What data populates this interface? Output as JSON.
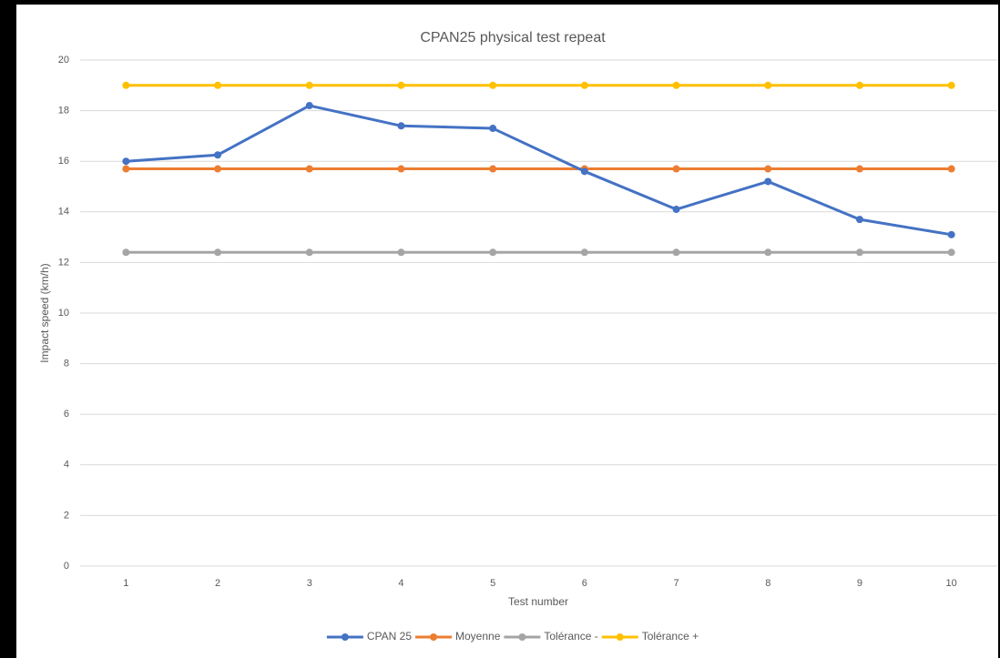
{
  "chart_data": {
    "type": "line",
    "title": "CPAN25 physical test repeat",
    "x_label": "Test number",
    "y_label": "Impact speed (km/h)",
    "categories": [
      "1",
      "2",
      "3",
      "4",
      "5",
      "6",
      "7",
      "8",
      "9",
      "10"
    ],
    "series": [
      {
        "name": "CPAN 25",
        "color": "#4472c4",
        "values": [
          16.0,
          16.25,
          18.2,
          17.4,
          17.3,
          15.6,
          14.1,
          15.2,
          13.7,
          13.1
        ]
      },
      {
        "name": "Moyenne",
        "color": "#ed7d31",
        "values": [
          15.7,
          15.7,
          15.7,
          15.7,
          15.7,
          15.7,
          15.7,
          15.7,
          15.7,
          15.7
        ]
      },
      {
        "name": "Tolérance -",
        "color": "#a5a5a5",
        "values": [
          12.4,
          12.4,
          12.4,
          12.4,
          12.4,
          12.4,
          12.4,
          12.4,
          12.4,
          12.4
        ]
      },
      {
        "name": "Tolérance +",
        "color": "#ffc000",
        "values": [
          19,
          19,
          19,
          19,
          19,
          19,
          19,
          19,
          19,
          19
        ]
      }
    ],
    "ylim": [
      0,
      20
    ],
    "yticks": [
      0,
      2,
      4,
      6,
      8,
      10,
      12,
      14,
      16,
      18,
      20
    ],
    "grid": true,
    "legend": "bottom"
  }
}
